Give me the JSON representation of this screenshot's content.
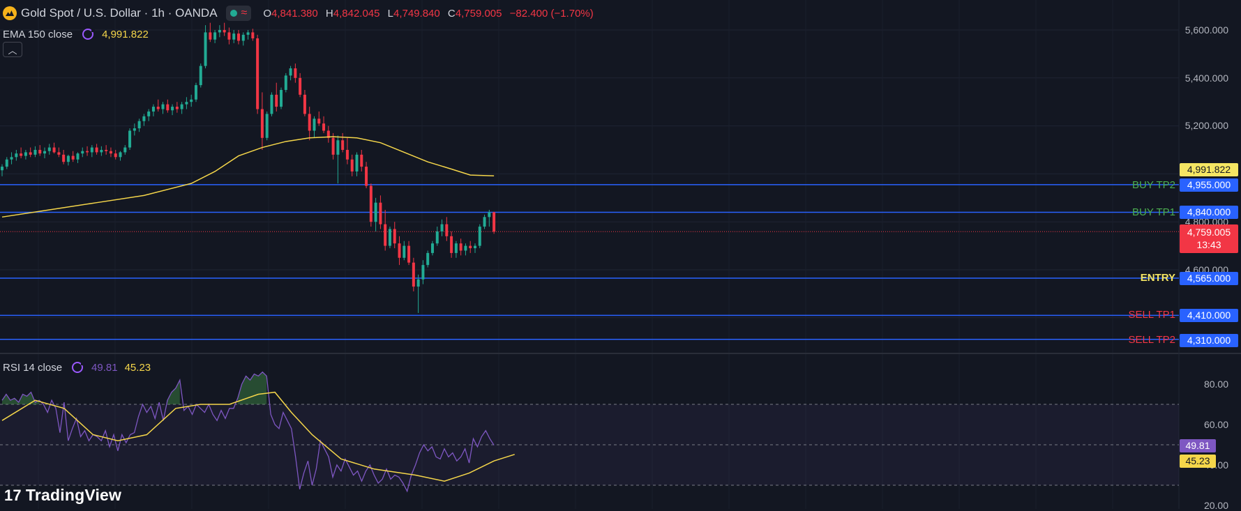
{
  "header": {
    "symbol": "Gold Spot / U.S. Dollar · 1h · OANDA",
    "open_label": "O",
    "open": "4,841.380",
    "high_label": "H",
    "high": "4,842.045",
    "low_label": "L",
    "low": "4,749.840",
    "close_label": "C",
    "close": "4,759.005",
    "change": "−82.400 (−1.70%)"
  },
  "ema": {
    "label": "EMA 150 close",
    "value": "4,991.822"
  },
  "rsi": {
    "label": "RSI 14 close",
    "value": "49.81",
    "ma_value": "45.23"
  },
  "branding": {
    "logo_text": "TradingView"
  },
  "price_axis": {
    "ticks": [
      "5,600.000",
      "5,400.000",
      "5,200.000",
      "4,800.000",
      "4,600.000"
    ]
  },
  "rsi_axis": {
    "ticks": [
      "80.00",
      "60.00",
      "40.00",
      "20.00"
    ]
  },
  "levels": [
    {
      "name": "BUY TP2",
      "price_label": "4,955.000",
      "price": 4955,
      "color": "#4caf50"
    },
    {
      "name": "BUY TP1",
      "price_label": "4,840.000",
      "price": 4840,
      "color": "#4caf50"
    },
    {
      "name": "ENTRY",
      "price_label": "4,565.000",
      "price": 4565,
      "color": "#f5e663"
    },
    {
      "name": "SELL TP1",
      "price_label": "4,410.000",
      "price": 4410,
      "color": "#f23645"
    },
    {
      "name": "SELL TP2",
      "price_label": "4,310.000",
      "price": 4310,
      "color": "#f23645"
    }
  ],
  "last_price": {
    "value": "4,759.005",
    "countdown": "13:43"
  },
  "colors": {
    "up": "#22ab94",
    "down": "#f23645",
    "ema": "#f5d64a",
    "rsi": "#7e57c2",
    "rsi_ma": "#f5d64a",
    "level_line": "#2962ff",
    "background": "#131722"
  },
  "chart_data": {
    "type": "candlestick",
    "price_range": [
      4300,
      5650
    ],
    "candles": [
      [
        5015,
        5040,
        4990,
        5030
      ],
      [
        5030,
        5070,
        5020,
        5060
      ],
      [
        5060,
        5090,
        5040,
        5070
      ],
      [
        5070,
        5100,
        5055,
        5085
      ],
      [
        5085,
        5110,
        5065,
        5075
      ],
      [
        5075,
        5100,
        5060,
        5090
      ],
      [
        5090,
        5110,
        5070,
        5080
      ],
      [
        5080,
        5115,
        5070,
        5100
      ],
      [
        5100,
        5120,
        5075,
        5085
      ],
      [
        5085,
        5110,
        5065,
        5095
      ],
      [
        5095,
        5125,
        5080,
        5110
      ],
      [
        5110,
        5130,
        5085,
        5090
      ],
      [
        5090,
        5110,
        5070,
        5080
      ],
      [
        5080,
        5100,
        5040,
        5050
      ],
      [
        5050,
        5080,
        5035,
        5075
      ],
      [
        5075,
        5095,
        5050,
        5060
      ],
      [
        5060,
        5090,
        5045,
        5085
      ],
      [
        5085,
        5110,
        5070,
        5095
      ],
      [
        5095,
        5115,
        5075,
        5090
      ],
      [
        5090,
        5120,
        5070,
        5110
      ],
      [
        5110,
        5125,
        5080,
        5090
      ],
      [
        5090,
        5115,
        5075,
        5100
      ],
      [
        5100,
        5120,
        5080,
        5095
      ],
      [
        5095,
        5110,
        5070,
        5085
      ],
      [
        5085,
        5100,
        5060,
        5070
      ],
      [
        5070,
        5095,
        5055,
        5090
      ],
      [
        5090,
        5120,
        5080,
        5110
      ],
      [
        5110,
        5190,
        5100,
        5180
      ],
      [
        5180,
        5210,
        5160,
        5190
      ],
      [
        5190,
        5230,
        5175,
        5220
      ],
      [
        5220,
        5250,
        5200,
        5240
      ],
      [
        5240,
        5270,
        5220,
        5260
      ],
      [
        5260,
        5290,
        5240,
        5280
      ],
      [
        5280,
        5310,
        5260,
        5270
      ],
      [
        5270,
        5300,
        5250,
        5290
      ],
      [
        5290,
        5310,
        5255,
        5265
      ],
      [
        5265,
        5290,
        5245,
        5280
      ],
      [
        5280,
        5300,
        5255,
        5270
      ],
      [
        5270,
        5300,
        5250,
        5290
      ],
      [
        5290,
        5320,
        5270,
        5300
      ],
      [
        5300,
        5330,
        5280,
        5310
      ],
      [
        5310,
        5380,
        5300,
        5370
      ],
      [
        5370,
        5460,
        5360,
        5450
      ],
      [
        5450,
        5620,
        5440,
        5590
      ],
      [
        5590,
        5630,
        5550,
        5560
      ],
      [
        5560,
        5600,
        5545,
        5590
      ],
      [
        5590,
        5620,
        5570,
        5600
      ],
      [
        5600,
        5630,
        5575,
        5590
      ],
      [
        5590,
        5610,
        5540,
        5560
      ],
      [
        5560,
        5600,
        5545,
        5585
      ],
      [
        5585,
        5600,
        5540,
        5555
      ],
      [
        5555,
        5590,
        5535,
        5580
      ],
      [
        5580,
        5600,
        5560,
        5590
      ],
      [
        5590,
        5605,
        5555,
        5565
      ],
      [
        5565,
        5580,
        5250,
        5270
      ],
      [
        5270,
        5340,
        5100,
        5150
      ],
      [
        5150,
        5260,
        5140,
        5250
      ],
      [
        5250,
        5340,
        5240,
        5330
      ],
      [
        5330,
        5380,
        5260,
        5280
      ],
      [
        5280,
        5360,
        5270,
        5350
      ],
      [
        5350,
        5420,
        5340,
        5410
      ],
      [
        5410,
        5450,
        5390,
        5440
      ],
      [
        5440,
        5460,
        5380,
        5400
      ],
      [
        5400,
        5420,
        5320,
        5330
      ],
      [
        5330,
        5350,
        5240,
        5250
      ],
      [
        5250,
        5280,
        5140,
        5180
      ],
      [
        5180,
        5240,
        5150,
        5230
      ],
      [
        5230,
        5260,
        5200,
        5210
      ],
      [
        5210,
        5240,
        5170,
        5180
      ],
      [
        5180,
        5200,
        5130,
        5150
      ],
      [
        5150,
        5170,
        5060,
        5080
      ],
      [
        5080,
        5160,
        4960,
        5140
      ],
      [
        5140,
        5170,
        5090,
        5100
      ],
      [
        5100,
        5150,
        5040,
        5060
      ],
      [
        5060,
        5080,
        4990,
        5010
      ],
      [
        5010,
        5090,
        4990,
        5080
      ],
      [
        5080,
        5100,
        5010,
        5030
      ],
      [
        5030,
        5050,
        4940,
        4950
      ],
      [
        4950,
        4960,
        4780,
        4800
      ],
      [
        4800,
        4900,
        4760,
        4880
      ],
      [
        4880,
        4910,
        4770,
        4790
      ],
      [
        4790,
        4850,
        4680,
        4700
      ],
      [
        4700,
        4780,
        4690,
        4770
      ],
      [
        4770,
        4800,
        4690,
        4710
      ],
      [
        4710,
        4740,
        4620,
        4650
      ],
      [
        4650,
        4720,
        4640,
        4700
      ],
      [
        4700,
        4720,
        4620,
        4630
      ],
      [
        4630,
        4650,
        4510,
        4530
      ],
      [
        4530,
        4580,
        4420,
        4560
      ],
      [
        4560,
        4640,
        4540,
        4620
      ],
      [
        4620,
        4680,
        4610,
        4670
      ],
      [
        4670,
        4720,
        4660,
        4710
      ],
      [
        4710,
        4780,
        4700,
        4760
      ],
      [
        4760,
        4810,
        4740,
        4790
      ],
      [
        4790,
        4820,
        4720,
        4740
      ],
      [
        4740,
        4760,
        4650,
        4670
      ],
      [
        4670,
        4720,
        4650,
        4710
      ],
      [
        4710,
        4730,
        4660,
        4680
      ],
      [
        4680,
        4710,
        4660,
        4700
      ],
      [
        4700,
        4720,
        4670,
        4690
      ],
      [
        4690,
        4710,
        4670,
        4700
      ],
      [
        4700,
        4790,
        4690,
        4780
      ],
      [
        4780,
        4830,
        4770,
        4820
      ],
      [
        4820,
        4850,
        4780,
        4840
      ],
      [
        4840,
        4842,
        4750,
        4759
      ]
    ],
    "ema150": [
      [
        0,
        4820
      ],
      [
        10,
        4850
      ],
      [
        20,
        4880
      ],
      [
        30,
        4910
      ],
      [
        40,
        4960
      ],
      [
        45,
        5010
      ],
      [
        50,
        5075
      ],
      [
        55,
        5110
      ],
      [
        60,
        5135
      ],
      [
        65,
        5150
      ],
      [
        70,
        5155
      ],
      [
        75,
        5150
      ],
      [
        80,
        5130
      ],
      [
        85,
        5090
      ],
      [
        90,
        5050
      ],
      [
        95,
        5020
      ],
      [
        99,
        4995
      ],
      [
        104,
        4991.822
      ]
    ],
    "rsi": [
      72,
      75,
      72,
      73,
      71,
      75,
      74,
      76,
      71,
      72,
      70,
      66,
      72,
      68,
      56,
      71,
      52,
      58,
      63,
      54,
      57,
      52,
      55,
      54,
      52,
      57,
      49,
      55,
      47,
      55,
      51,
      55,
      56,
      64,
      70,
      66,
      69,
      63,
      71,
      62,
      72,
      76,
      78,
      82,
      67,
      69,
      65,
      70,
      68,
      66,
      70,
      65,
      62,
      67,
      63,
      68,
      68,
      73,
      80,
      84,
      82,
      85,
      84,
      86,
      84,
      65,
      60,
      58,
      66,
      62,
      58,
      44,
      28,
      36,
      42,
      30,
      38,
      52,
      48,
      44,
      34,
      40,
      37,
      43,
      39,
      35,
      37,
      32,
      37,
      40,
      35,
      31,
      33,
      38,
      33,
      35,
      34,
      31,
      27,
      35,
      40,
      46,
      50,
      47,
      49,
      44,
      43,
      48,
      44,
      46,
      42,
      44,
      48,
      41,
      53,
      49,
      54,
      57,
      53,
      49.81
    ],
    "rsi_ma": [
      [
        0,
        62
      ],
      [
        8,
        72
      ],
      [
        15,
        68
      ],
      [
        22,
        55
      ],
      [
        28,
        52
      ],
      [
        35,
        55
      ],
      [
        42,
        68
      ],
      [
        48,
        70
      ],
      [
        55,
        70
      ],
      [
        62,
        75
      ],
      [
        66,
        76
      ],
      [
        70,
        66
      ],
      [
        75,
        55
      ],
      [
        82,
        43
      ],
      [
        90,
        38
      ],
      [
        100,
        35
      ],
      [
        107,
        32
      ],
      [
        113,
        36
      ],
      [
        119,
        42
      ],
      [
        124,
        45.23
      ]
    ],
    "rsi_range": [
      15,
      92
    ],
    "rsi_bands": [
      30,
      50,
      70
    ]
  }
}
